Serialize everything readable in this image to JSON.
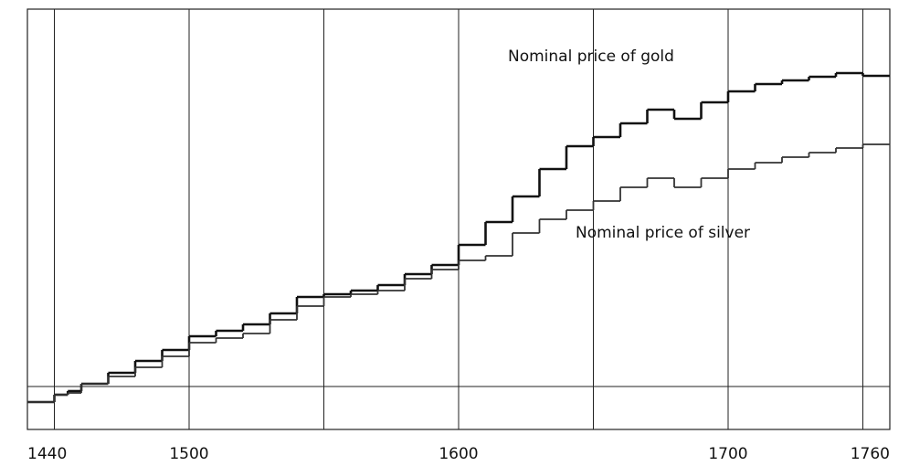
{
  "chart_data": {
    "type": "step",
    "xlim": [
      1440,
      1760
    ],
    "ylim": [
      0,
      460
    ],
    "xticks": [
      1440,
      1500,
      1600,
      1700,
      1760
    ],
    "vlines": [
      1450,
      1500,
      1550,
      1600,
      1650,
      1700,
      1750
    ],
    "baseline": 47,
    "annotations": [
      "Nominal price of gold",
      "Nominal price of silver"
    ],
    "x": [
      1440,
      1450,
      1455,
      1460,
      1470,
      1480,
      1490,
      1500,
      1510,
      1520,
      1530,
      1540,
      1550,
      1560,
      1570,
      1580,
      1590,
      1600,
      1610,
      1620,
      1630,
      1640,
      1650,
      1660,
      1670,
      1680,
      1690,
      1700,
      1710,
      1720,
      1730,
      1740,
      1750
    ],
    "series": [
      {
        "name": "Nominal price of gold",
        "color": "#111111",
        "values": [
          30,
          38,
          42,
          50,
          62,
          75,
          87,
          102,
          108,
          115,
          127,
          145,
          148,
          152,
          158,
          170,
          180,
          202,
          227,
          255,
          285,
          310,
          320,
          335,
          350,
          340,
          358,
          370,
          378,
          382,
          386,
          390,
          387
        ]
      },
      {
        "name": "Nominal price of silver",
        "color": "#333333",
        "values": [
          30,
          38,
          40,
          50,
          58,
          68,
          80,
          95,
          100,
          105,
          120,
          135,
          145,
          148,
          152,
          165,
          175,
          185,
          190,
          215,
          230,
          240,
          250,
          265,
          275,
          265,
          275,
          285,
          292,
          298,
          303,
          308,
          312
        ]
      }
    ]
  }
}
